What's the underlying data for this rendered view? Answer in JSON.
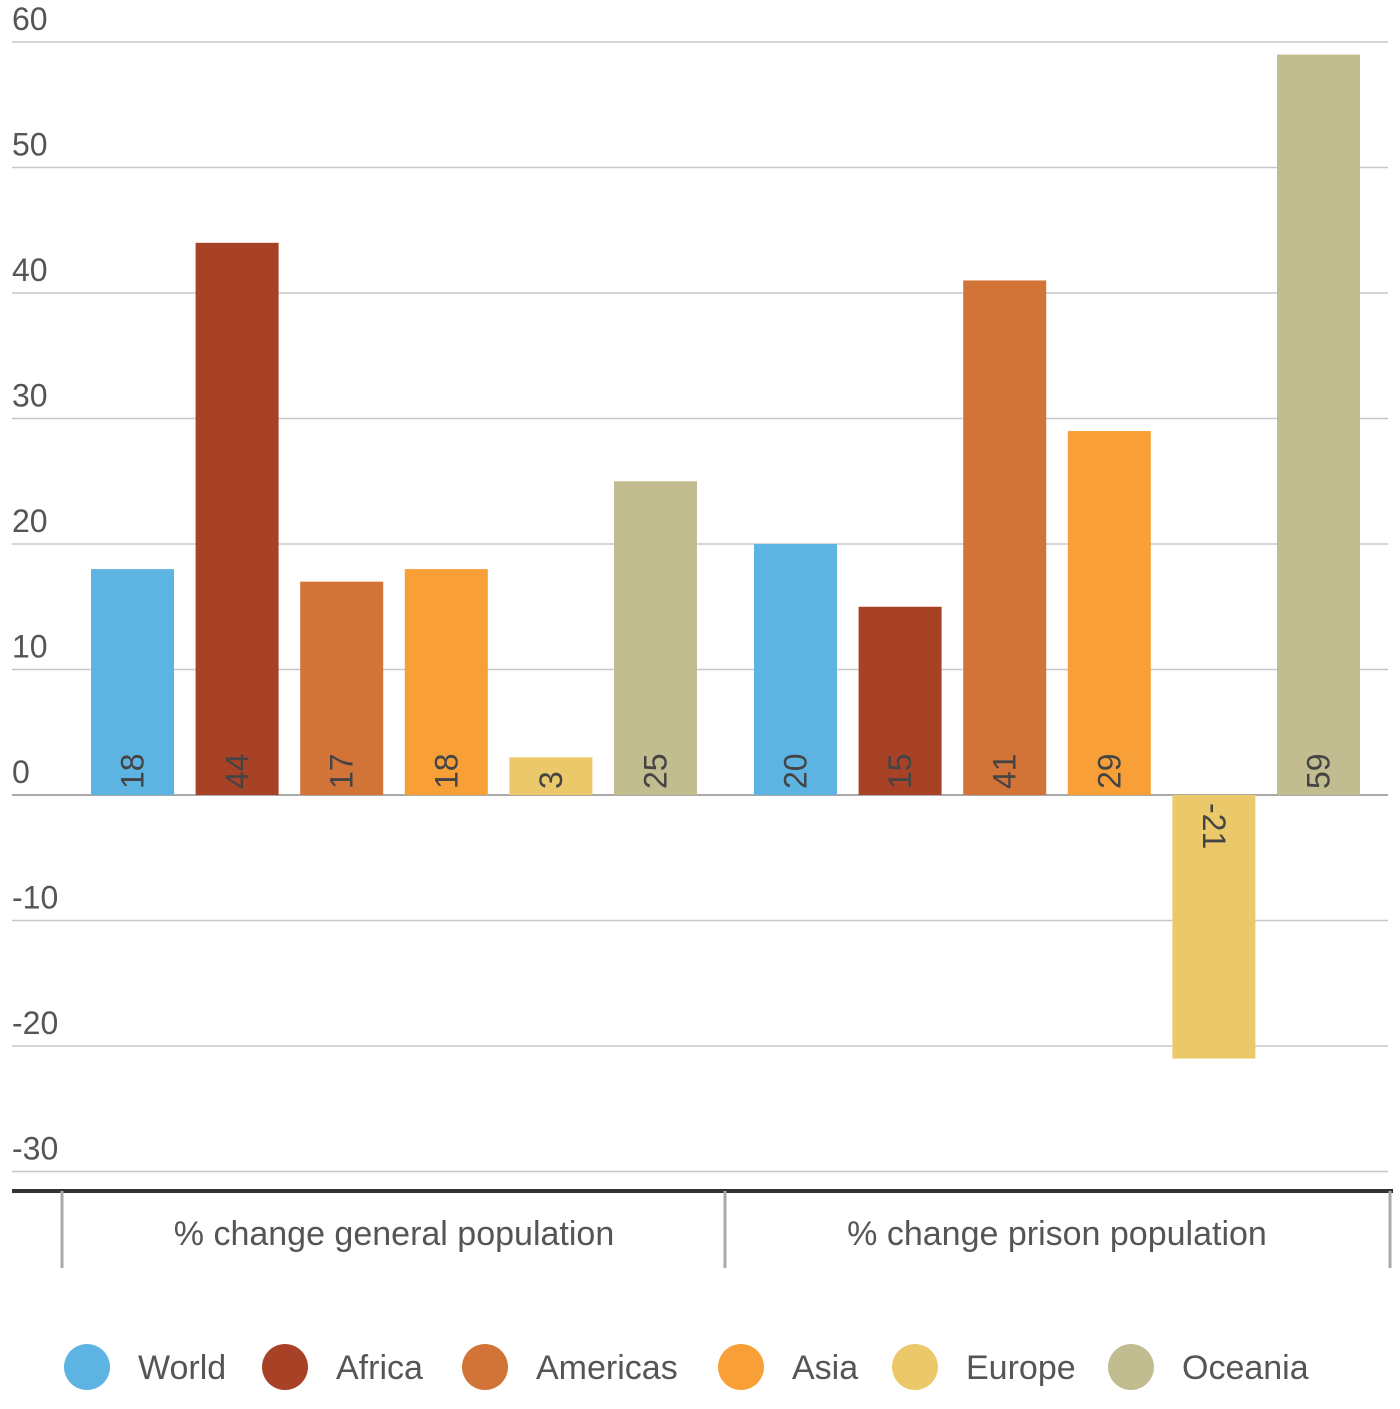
{
  "chart_data": {
    "type": "bar",
    "categories": [
      "% change general population",
      "% change prison population"
    ],
    "series": [
      {
        "name": "World",
        "color": "#5db4e3",
        "values": [
          18,
          20
        ]
      },
      {
        "name": "Africa",
        "color": "#a84226",
        "values": [
          44,
          15
        ]
      },
      {
        "name": "Americas",
        "color": "#d27437",
        "values": [
          17,
          41
        ]
      },
      {
        "name": "Asia",
        "color": "#f89f38",
        "values": [
          18,
          29
        ]
      },
      {
        "name": "Europe",
        "color": "#ebc96a",
        "values": [
          3,
          -21
        ]
      },
      {
        "name": "Oceania",
        "color": "#c2bd91",
        "values": [
          25,
          59
        ]
      }
    ],
    "ylim": [
      -30,
      60
    ],
    "yticks": [
      60,
      50,
      40,
      30,
      20,
      10,
      0,
      -10,
      -20,
      -30
    ],
    "grid": true,
    "legend_position": "bottom",
    "data_labels": true
  }
}
